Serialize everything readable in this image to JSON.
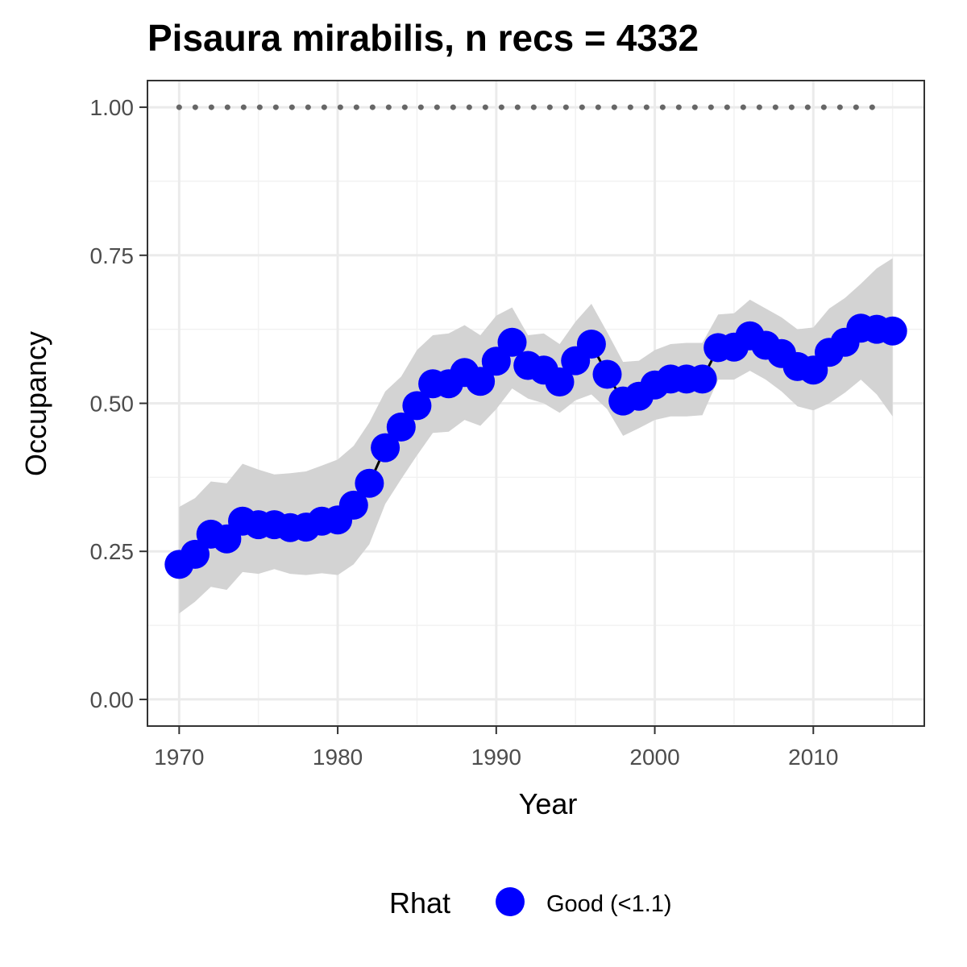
{
  "chart_data": {
    "type": "line",
    "title": "Pisaura mirabilis, n recs = 4332",
    "xlabel": "Year",
    "ylabel": "Occupancy",
    "xlim": [
      1968,
      2017
    ],
    "ylim": [
      -0.045,
      1.045
    ],
    "x_ticks": [
      1970,
      1980,
      1990,
      2000,
      2010
    ],
    "x_tick_labels": [
      "1970",
      "1980",
      "1990",
      "2000",
      "2010"
    ],
    "y_ticks": [
      0,
      0.25,
      0.5,
      0.75,
      1.0
    ],
    "y_tick_labels": [
      "0.00",
      "0.25",
      "0.50",
      "0.75",
      "1.00"
    ],
    "grid": true,
    "legend": {
      "title": "Rhat",
      "position": "bottom",
      "entries": [
        {
          "label": "Good (<1.1)",
          "color": "#0000ff"
        }
      ]
    },
    "colors": {
      "points": "#0000ff",
      "line": "#000000",
      "ribbon": "#d3d3d3",
      "reference_line": "#666666"
    },
    "reference_line": {
      "y": 1.0,
      "x_start": 1970,
      "x_end": 2014,
      "style": "dotted"
    },
    "series": [
      {
        "x": [
          1970,
          1971,
          1972,
          1973,
          1974,
          1975,
          1976,
          1977,
          1978,
          1979,
          1980,
          1981,
          1982,
          1983,
          1984,
          1985,
          1986,
          1987,
          1988,
          1989,
          1990,
          1991,
          1992,
          1993,
          1994,
          1995,
          1996,
          1997,
          1998,
          1999,
          2000,
          2001,
          2002,
          2003,
          2004,
          2005,
          2006,
          2007,
          2008,
          2009,
          2010,
          2011,
          2012,
          2013,
          2014,
          2015
        ],
        "y": [
          0.228,
          0.245,
          0.279,
          0.271,
          0.301,
          0.295,
          0.295,
          0.29,
          0.291,
          0.301,
          0.303,
          0.328,
          0.365,
          0.425,
          0.46,
          0.496,
          0.533,
          0.533,
          0.552,
          0.537,
          0.571,
          0.603,
          0.564,
          0.556,
          0.536,
          0.572,
          0.6,
          0.549,
          0.504,
          0.512,
          0.531,
          0.541,
          0.541,
          0.541,
          0.594,
          0.595,
          0.614,
          0.598,
          0.584,
          0.562,
          0.556,
          0.586,
          0.603,
          0.627,
          0.625,
          0.622
        ],
        "lower": [
          0.145,
          0.165,
          0.19,
          0.185,
          0.215,
          0.212,
          0.22,
          0.212,
          0.21,
          0.213,
          0.21,
          0.228,
          0.262,
          0.33,
          0.372,
          0.412,
          0.45,
          0.452,
          0.472,
          0.462,
          0.49,
          0.525,
          0.508,
          0.5,
          0.484,
          0.505,
          0.515,
          0.49,
          0.445,
          0.458,
          0.472,
          0.478,
          0.478,
          0.48,
          0.54,
          0.54,
          0.555,
          0.54,
          0.52,
          0.495,
          0.488,
          0.5,
          0.518,
          0.54,
          0.515,
          0.478
        ],
        "upper": [
          0.325,
          0.34,
          0.368,
          0.365,
          0.398,
          0.388,
          0.38,
          0.382,
          0.385,
          0.395,
          0.405,
          0.428,
          0.468,
          0.52,
          0.545,
          0.59,
          0.615,
          0.618,
          0.632,
          0.615,
          0.648,
          0.662,
          0.615,
          0.618,
          0.6,
          0.638,
          0.668,
          0.62,
          0.57,
          0.572,
          0.59,
          0.6,
          0.602,
          0.602,
          0.65,
          0.652,
          0.675,
          0.66,
          0.645,
          0.625,
          0.628,
          0.66,
          0.678,
          0.702,
          0.728,
          0.745
        ]
      }
    ]
  }
}
